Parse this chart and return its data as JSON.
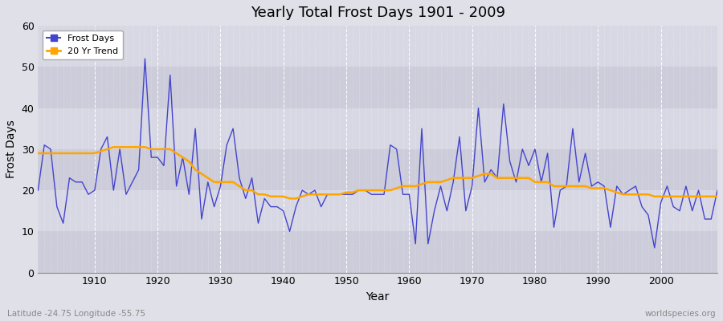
{
  "title": "Yearly Total Frost Days 1901 - 2009",
  "xlabel": "Year",
  "ylabel": "Frost Days",
  "lat_lon_label": "Latitude -24.75 Longitude -55.75",
  "source_label": "worldspecies.org",
  "line_color": "#4444cc",
  "trend_color": "#FFA500",
  "fig_bg_color": "#e0e0e8",
  "plot_bg_color": "#d8d8e4",
  "alt_band_color": "#ccccda",
  "ylim": [
    0,
    60
  ],
  "yticks": [
    0,
    10,
    20,
    30,
    40,
    50,
    60
  ],
  "xlim": [
    1901,
    2009
  ],
  "frost_days": {
    "1901": 20,
    "1902": 31,
    "1903": 30,
    "1904": 16,
    "1905": 12,
    "1906": 23,
    "1907": 22,
    "1908": 22,
    "1909": 19,
    "1910": 20,
    "1911": 30,
    "1912": 33,
    "1913": 20,
    "1914": 30,
    "1915": 19,
    "1916": 22,
    "1917": 25,
    "1918": 52,
    "1919": 28,
    "1920": 28,
    "1921": 26,
    "1922": 48,
    "1923": 21,
    "1924": 28,
    "1925": 19,
    "1926": 35,
    "1927": 13,
    "1928": 22,
    "1929": 16,
    "1930": 21,
    "1931": 31,
    "1932": 35,
    "1933": 23,
    "1934": 18,
    "1935": 23,
    "1936": 12,
    "1937": 18,
    "1938": 16,
    "1939": 16,
    "1940": 15,
    "1941": 10,
    "1942": 16,
    "1943": 20,
    "1944": 19,
    "1945": 20,
    "1946": 16,
    "1947": 19,
    "1948": 19,
    "1949": 19,
    "1950": 19,
    "1951": 19,
    "1952": 20,
    "1953": 20,
    "1954": 19,
    "1955": 19,
    "1956": 19,
    "1957": 31,
    "1958": 30,
    "1959": 19,
    "1960": 19,
    "1961": 7,
    "1962": 35,
    "1963": 7,
    "1964": 15,
    "1965": 21,
    "1966": 15,
    "1967": 22,
    "1968": 33,
    "1969": 15,
    "1970": 21,
    "1971": 40,
    "1972": 22,
    "1973": 25,
    "1974": 23,
    "1975": 41,
    "1976": 27,
    "1977": 22,
    "1978": 30,
    "1979": 26,
    "1980": 30,
    "1981": 22,
    "1982": 29,
    "1983": 11,
    "1984": 20,
    "1985": 21,
    "1986": 35,
    "1987": 22,
    "1988": 29,
    "1989": 21,
    "1990": 22,
    "1991": 21,
    "1992": 11,
    "1993": 21,
    "1994": 19,
    "1995": 20,
    "1996": 21,
    "1997": 16,
    "1998": 14,
    "1999": 6,
    "2000": 17,
    "2001": 21,
    "2002": 16,
    "2003": 15,
    "2004": 21,
    "2005": 15,
    "2006": 20,
    "2007": 13,
    "2008": 13,
    "2009": 20
  },
  "trend_20yr": {
    "1901": 29,
    "1902": 29,
    "1903": 29,
    "1904": 29,
    "1905": 29,
    "1906": 29,
    "1907": 29,
    "1908": 29,
    "1909": 29,
    "1910": 29,
    "1911": 29.5,
    "1912": 30,
    "1913": 30.5,
    "1914": 30.5,
    "1915": 30.5,
    "1916": 30.5,
    "1917": 30.5,
    "1918": 30.5,
    "1919": 30,
    "1920": 30,
    "1921": 30,
    "1922": 30,
    "1923": 29,
    "1924": 28,
    "1925": 27,
    "1926": 25,
    "1927": 24,
    "1928": 23,
    "1929": 22,
    "1930": 22,
    "1931": 22,
    "1932": 22,
    "1933": 21,
    "1934": 20,
    "1935": 20,
    "1936": 19,
    "1937": 19,
    "1938": 18.5,
    "1939": 18.5,
    "1940": 18.5,
    "1941": 18,
    "1942": 18,
    "1943": 18.5,
    "1944": 19,
    "1945": 19,
    "1946": 19,
    "1947": 19,
    "1948": 19,
    "1949": 19,
    "1950": 19.5,
    "1951": 19.5,
    "1952": 20,
    "1953": 20,
    "1954": 20,
    "1955": 20,
    "1956": 20,
    "1957": 20,
    "1958": 20.5,
    "1959": 21,
    "1960": 21,
    "1961": 21,
    "1962": 21.5,
    "1963": 22,
    "1964": 22,
    "1965": 22,
    "1966": 22.5,
    "1967": 23,
    "1968": 23,
    "1969": 23,
    "1970": 23,
    "1971": 23.5,
    "1972": 24,
    "1973": 24,
    "1974": 23,
    "1975": 23,
    "1976": 23,
    "1977": 23,
    "1978": 23,
    "1979": 23,
    "1980": 22,
    "1981": 22,
    "1982": 22,
    "1983": 21,
    "1984": 21,
    "1985": 21,
    "1986": 21,
    "1987": 21,
    "1988": 21,
    "1989": 20.5,
    "1990": 20.5,
    "1991": 20.5,
    "1992": 20,
    "1993": 19.5,
    "1994": 19,
    "1995": 19,
    "1996": 19,
    "1997": 19,
    "1998": 19,
    "1999": 18.5,
    "2000": 18.5,
    "2001": 18.5,
    "2002": 18.5,
    "2003": 18.5,
    "2004": 18.5,
    "2005": 18.5,
    "2006": 18.5,
    "2007": 18.5,
    "2008": 18.5,
    "2009": 18.5
  }
}
